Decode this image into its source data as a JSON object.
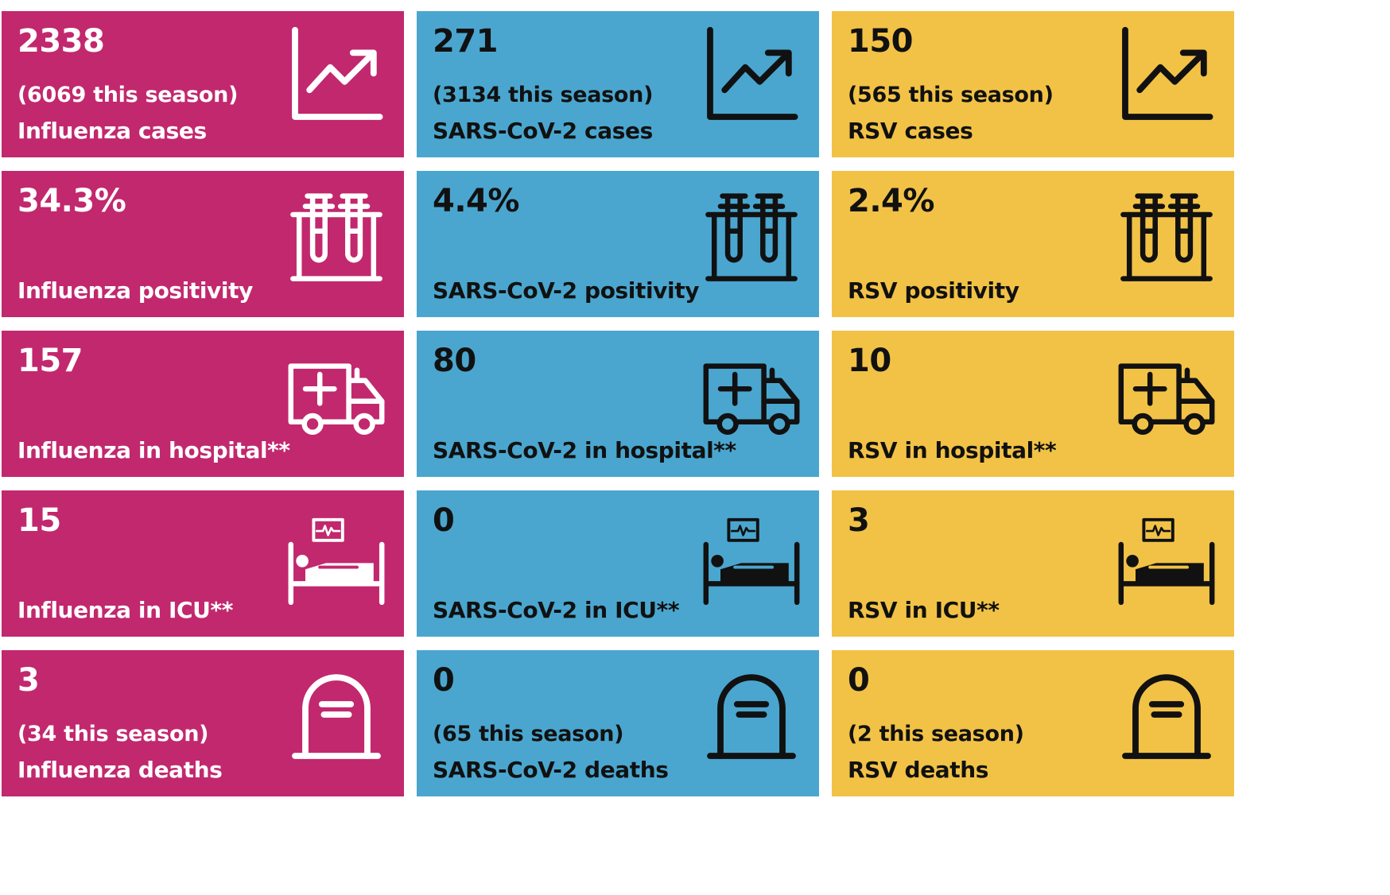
{
  "colors": {
    "influenza": "#c2286e",
    "sarscov2": "#4aa6cf",
    "rsv": "#f2c246"
  },
  "rows": [
    {
      "icon": "trend-chart-icon",
      "tiles": [
        {
          "value": "2338",
          "season": "(6069 this season)",
          "label": "Influenza cases"
        },
        {
          "value": "271",
          "season": "(3134 this season)",
          "label": "SARS-CoV-2 cases"
        },
        {
          "value": "150",
          "season": "(565 this season)",
          "label": "RSV cases"
        }
      ]
    },
    {
      "icon": "test-tubes-icon",
      "tiles": [
        {
          "value": "34.3%",
          "label": "Influenza positivity"
        },
        {
          "value": "4.4%",
          "label": "SARS-CoV-2 positivity"
        },
        {
          "value": "2.4%",
          "label": "RSV positivity"
        }
      ]
    },
    {
      "icon": "ambulance-icon",
      "tiles": [
        {
          "value": "157",
          "label": "Influenza in hospital**"
        },
        {
          "value": "80",
          "label": "SARS-CoV-2 in hospital**"
        },
        {
          "value": "10",
          "label": "RSV in hospital**"
        }
      ]
    },
    {
      "icon": "icu-bed-icon",
      "tiles": [
        {
          "value": "15",
          "label": "Influenza in ICU**"
        },
        {
          "value": "0",
          "label": "SARS-CoV-2 in ICU**"
        },
        {
          "value": "3",
          "label": "RSV in ICU**"
        }
      ]
    },
    {
      "icon": "tombstone-icon",
      "tiles": [
        {
          "value": "3",
          "season": "(34 this season)",
          "label": "Influenza deaths"
        },
        {
          "value": "0",
          "season": "(65 this season)",
          "label": "SARS-CoV-2 deaths"
        },
        {
          "value": "0",
          "season": "(2 this season)",
          "label": "RSV deaths"
        }
      ]
    }
  ]
}
